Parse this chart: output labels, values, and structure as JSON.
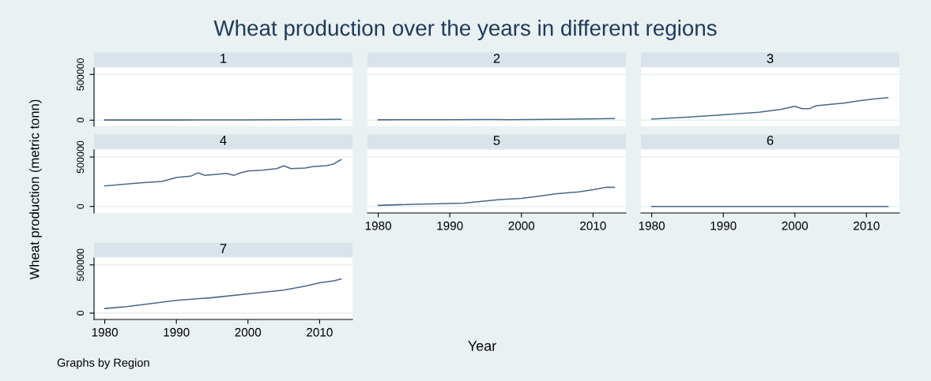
{
  "chart_data": [
    {
      "type": "line",
      "title": "1",
      "x": [
        1980,
        1990,
        2000,
        2005,
        2013
      ],
      "values": [
        2000,
        2000,
        3000,
        6000,
        10000
      ],
      "color": "#4a6786",
      "xlim": [
        1978.5,
        2014.6
      ],
      "ylim": [
        -66000,
        572000
      ],
      "xticks": [
        1980,
        1990,
        2000,
        2010
      ],
      "yticks": [
        0,
        500000
      ],
      "tick_labels": "y",
      "grid": "y"
    },
    {
      "type": "line",
      "title": "2",
      "x": [
        1980,
        1990,
        1996,
        1998,
        2005,
        2013
      ],
      "values": [
        4000,
        6000,
        8000,
        6000,
        9000,
        18000
      ],
      "color": "#4a6786",
      "xlim": [
        1978.5,
        2014.6
      ],
      "ylim": [
        -66000,
        572000
      ],
      "xticks": [
        1980,
        1990,
        2000,
        2010
      ],
      "yticks": [
        0,
        500000
      ],
      "tick_labels": false,
      "grid": "y"
    },
    {
      "type": "line",
      "title": "3",
      "x": [
        1980,
        1985,
        1990,
        1995,
        1998,
        2000,
        2001,
        2002,
        2003,
        2005,
        2007,
        2009,
        2011,
        2013
      ],
      "values": [
        11000,
        33000,
        59000,
        88000,
        118000,
        151000,
        125000,
        125000,
        158000,
        173000,
        188000,
        213000,
        232000,
        246000
      ],
      "color": "#4a6786",
      "xlim": [
        1978.5,
        2014.6
      ],
      "ylim": [
        -66000,
        572000
      ],
      "xticks": [
        1980,
        1990,
        2000,
        2010
      ],
      "yticks": [
        0,
        500000
      ],
      "tick_labels": false,
      "grid": "y"
    },
    {
      "type": "line",
      "title": "4",
      "x": [
        1980,
        1985,
        1988,
        1990,
        1992,
        1993,
        1994,
        1996,
        1997,
        1998,
        1999,
        2000,
        2002,
        2004,
        2005,
        2006,
        2008,
        2009,
        2011,
        2012,
        2013
      ],
      "values": [
        207000,
        239000,
        253000,
        292000,
        306000,
        340000,
        314000,
        327000,
        335000,
        314000,
        340000,
        359000,
        367000,
        383000,
        410000,
        383000,
        388000,
        402000,
        412000,
        431000,
        473000
      ],
      "color": "#4a6786",
      "xlim": [
        1978.5,
        2014.6
      ],
      "ylim": [
        -66000,
        572000
      ],
      "xticks": [
        1980,
        1990,
        2000,
        2010
      ],
      "yticks": [
        0,
        500000
      ],
      "tick_labels": "y",
      "grid": "y"
    },
    {
      "type": "line",
      "title": "5",
      "x": [
        1980,
        1985,
        1990,
        1992,
        1995,
        1997,
        2000,
        2002,
        2005,
        2008,
        2010,
        2012,
        2013
      ],
      "values": [
        11000,
        22000,
        30000,
        33000,
        56000,
        70000,
        81000,
        100000,
        130000,
        148000,
        170000,
        196000,
        193000
      ],
      "color": "#4a6786",
      "xlim": [
        1978.5,
        2014.6
      ],
      "ylim": [
        -66000,
        572000
      ],
      "xticks": [
        1980,
        1990,
        2000,
        2010
      ],
      "yticks": [
        0,
        500000
      ],
      "tick_labels": "x",
      "grid": "y"
    },
    {
      "type": "line",
      "title": "6",
      "x": [
        1980,
        2013
      ],
      "values": [
        0,
        0
      ],
      "color": "#4a6786",
      "xlim": [
        1978.5,
        2014.6
      ],
      "ylim": [
        -66000,
        572000
      ],
      "xticks": [
        1980,
        1990,
        2000,
        2010
      ],
      "yticks": [
        0,
        500000
      ],
      "tick_labels": "x",
      "grid": "y"
    },
    {
      "type": "line",
      "title": "7",
      "x": [
        1980,
        1983,
        1985,
        1990,
        1995,
        2000,
        2005,
        2008,
        2010,
        2012,
        2013
      ],
      "values": [
        48000,
        66000,
        85000,
        133000,
        160000,
        200000,
        239000,
        279000,
        314000,
        335000,
        354000
      ],
      "color": "#4a6786",
      "xlim": [
        1978.5,
        2014.6
      ],
      "ylim": [
        -66000,
        572000
      ],
      "xticks": [
        1980,
        1990,
        2000,
        2010
      ],
      "yticks": [
        0,
        500000
      ],
      "grid": "y"
    },
    {
      "type": "other",
      "title": "Wheat production over the years in different regions",
      "xlabel": "Year",
      "ylabel": "Wheat production (metric tonn)",
      "annotations": [
        "Graphs by Region"
      ]
    }
  ]
}
